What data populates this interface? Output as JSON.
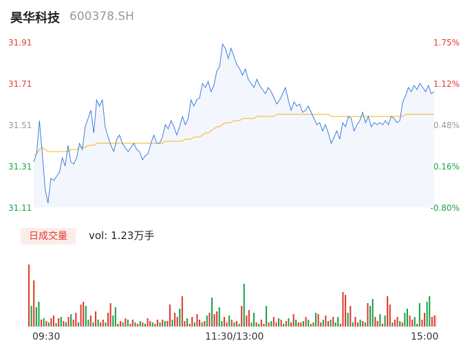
{
  "header": {
    "name": "昊华科技",
    "code": "600378.SH"
  },
  "price_axis": [
    "31.91",
    "31.71",
    "31.51",
    "31.31",
    "31.11"
  ],
  "pct_axis": [
    "1.75%",
    "1.12%",
    "0.48%",
    "-0.16%",
    "-0.80%"
  ],
  "axis_colors": [
    "#e03c31",
    "#e03c31",
    "#999999",
    "#1aa34a",
    "#1aa34a"
  ],
  "volume": {
    "tab_label": "日成交量",
    "text": "vol: 1.23万手"
  },
  "time_labels": [
    "09:30",
    "11:30/13:00",
    "15:00"
  ],
  "colors": {
    "price": "#3b7de1",
    "avg": "#f5c04a",
    "up": "#e03c31",
    "down": "#1aa34a",
    "area": "#f3f6fc"
  },
  "chart_data": [
    {
      "type": "line",
      "title": "",
      "ylim": [
        31.11,
        31.91
      ],
      "series": [
        {
          "values": [
            31.33,
            31.37,
            31.53,
            31.37,
            31.2,
            31.13,
            31.25,
            31.24,
            31.26,
            31.28,
            31.35,
            31.31,
            31.41,
            31.33,
            31.32,
            31.35,
            31.42,
            31.39,
            31.5,
            31.54,
            31.58,
            31.47,
            31.63,
            31.6,
            31.63,
            31.5,
            31.45,
            31.41,
            31.38,
            31.44,
            31.46,
            31.42,
            31.4,
            31.38,
            31.4,
            31.42,
            31.39,
            31.38,
            31.34,
            31.36,
            31.37,
            31.42,
            31.46,
            31.42,
            31.42,
            31.45,
            31.51,
            31.49,
            31.53,
            31.5,
            31.46,
            31.5,
            31.55,
            31.51,
            31.54,
            31.63,
            31.6,
            31.63,
            31.64,
            31.71,
            31.69,
            31.72,
            31.67,
            31.7,
            31.77,
            31.79,
            31.9,
            31.88,
            31.83,
            31.88,
            31.84,
            31.8,
            31.78,
            31.75,
            31.78,
            31.73,
            31.71,
            31.69,
            31.73,
            31.7,
            31.68,
            31.66,
            31.69,
            31.67,
            31.64,
            31.61,
            31.63,
            31.66,
            31.69,
            31.63,
            31.58,
            31.62,
            31.6,
            31.61,
            31.57,
            31.58,
            31.6,
            31.57,
            31.54,
            31.51,
            31.52,
            31.48,
            31.51,
            31.47,
            31.42,
            31.45,
            31.48,
            31.44,
            31.52,
            31.5,
            31.55,
            31.54,
            31.48,
            31.51,
            31.53,
            31.57,
            31.52,
            31.55,
            31.5,
            31.52,
            31.51,
            31.52,
            31.51,
            31.53,
            31.51,
            31.55,
            31.54,
            31.52,
            31.53,
            31.62,
            31.65,
            31.69,
            31.67,
            31.7,
            31.68,
            31.71,
            31.69,
            31.67,
            31.7,
            31.66,
            31.67
          ]
        },
        {
          "values": [
            31.36,
            31.37,
            31.39,
            31.4,
            31.39,
            31.38,
            31.38,
            31.38,
            31.38,
            31.38,
            31.38,
            31.38,
            31.38,
            31.39,
            31.39,
            31.39,
            31.4,
            31.4,
            31.4,
            31.41,
            31.41,
            31.41,
            31.42,
            31.42,
            31.42,
            31.42,
            31.42,
            31.42,
            31.42,
            31.42,
            31.42,
            31.42,
            31.42,
            31.42,
            31.42,
            31.42,
            31.42,
            31.42,
            31.42,
            31.42,
            31.42,
            31.42,
            31.42,
            31.42,
            31.42,
            31.42,
            31.43,
            31.43,
            31.43,
            31.43,
            31.43,
            31.43,
            31.43,
            31.44,
            31.44,
            31.44,
            31.45,
            31.45,
            31.45,
            31.46,
            31.47,
            31.47,
            31.48,
            31.49,
            31.5,
            31.5,
            31.51,
            31.52,
            31.52,
            31.52,
            31.53,
            31.53,
            31.53,
            31.54,
            31.54,
            31.54,
            31.54,
            31.54,
            31.55,
            31.55,
            31.55,
            31.55,
            31.55,
            31.55,
            31.55,
            31.56,
            31.56,
            31.56,
            31.56,
            31.56,
            31.56,
            31.56,
            31.56,
            31.56,
            31.56,
            31.56,
            31.56,
            31.56,
            31.56,
            31.56,
            31.56,
            31.56,
            31.56,
            31.56,
            31.55,
            31.55,
            31.55,
            31.55,
            31.55,
            31.55,
            31.55,
            31.55,
            31.55,
            31.55,
            31.55,
            31.55,
            31.55,
            31.55,
            31.55,
            31.55,
            31.55,
            31.55,
            31.55,
            31.55,
            31.55,
            31.55,
            31.55,
            31.55,
            31.55,
            31.55,
            31.56,
            31.56,
            31.56,
            31.56,
            31.56,
            31.56,
            31.56,
            31.56,
            31.56,
            31.56,
            31.56
          ]
        }
      ]
    },
    {
      "type": "bar",
      "title": "",
      "series": [
        {
          "values": [
            90,
            30,
            67,
            28,
            36,
            10,
            12,
            8,
            6,
            12,
            16,
            5,
            12,
            14,
            8,
            6,
            14,
            18,
            10,
            20,
            6,
            32,
            36,
            30,
            10,
            16,
            6,
            22,
            10,
            6,
            10,
            6,
            20,
            34,
            16,
            28,
            4,
            8,
            6,
            12,
            10,
            4,
            10,
            6,
            4,
            8,
            6,
            4,
            12,
            8,
            6,
            4,
            10,
            6,
            10,
            8,
            8,
            32,
            10,
            20,
            14,
            26,
            44,
            8,
            12,
            4,
            14,
            6,
            18,
            10,
            6,
            8,
            16,
            20,
            42,
            18,
            22,
            28,
            8,
            14,
            6,
            16,
            10,
            6,
            8,
            4,
            30,
            62,
            16,
            24,
            6,
            20,
            6,
            4,
            10,
            4,
            30,
            6,
            8,
            14,
            6,
            12,
            10,
            4,
            8,
            12,
            6,
            18,
            10,
            6,
            6,
            8,
            14,
            10,
            4,
            6,
            20,
            18,
            6,
            10,
            16,
            8,
            10,
            14,
            6,
            14,
            4,
            50,
            46,
            20,
            30,
            6,
            14,
            6,
            10,
            8,
            6,
            34,
            30,
            40,
            14,
            8,
            18,
            4,
            16,
            44,
            32,
            6,
            10,
            14,
            8,
            6,
            20,
            26,
            16,
            10,
            14,
            4,
            34,
            10,
            20,
            36,
            44,
            14,
            16
          ],
          "up": [
            1,
            0,
            1,
            0,
            0,
            1,
            0,
            1,
            0,
            1,
            1,
            0,
            1,
            0,
            1,
            0,
            1,
            0,
            1,
            1,
            0,
            1,
            1,
            0,
            0,
            1,
            0,
            1,
            0,
            1,
            1,
            0,
            1,
            1,
            0,
            0,
            1,
            1,
            0,
            1,
            0,
            1,
            1,
            0,
            1,
            0,
            1,
            0,
            1,
            1,
            0,
            1,
            1,
            0,
            1,
            0,
            1,
            1,
            0,
            1,
            1,
            0,
            1,
            1,
            0,
            1,
            1,
            0,
            1,
            1,
            0,
            1,
            0,
            1,
            0,
            1,
            1,
            0,
            0,
            1,
            1,
            0,
            1,
            0,
            1,
            0,
            1,
            0,
            1,
            1,
            0,
            0,
            1,
            0,
            1,
            1,
            0,
            1,
            0,
            1,
            1,
            0,
            1,
            0,
            1,
            0,
            1,
            1,
            0,
            1,
            1,
            0,
            1,
            0,
            0,
            1,
            0,
            1,
            1,
            0,
            1,
            1,
            0,
            1,
            0,
            0,
            1,
            1,
            1,
            0,
            1,
            0,
            1,
            1,
            0,
            1,
            0,
            1,
            0,
            0,
            1,
            1,
            0,
            1,
            0,
            1,
            1,
            0,
            1,
            1,
            0,
            1,
            0,
            0,
            1,
            1,
            0,
            1,
            0,
            1,
            1,
            0,
            0,
            1,
            1
          ]
        }
      ]
    }
  ]
}
